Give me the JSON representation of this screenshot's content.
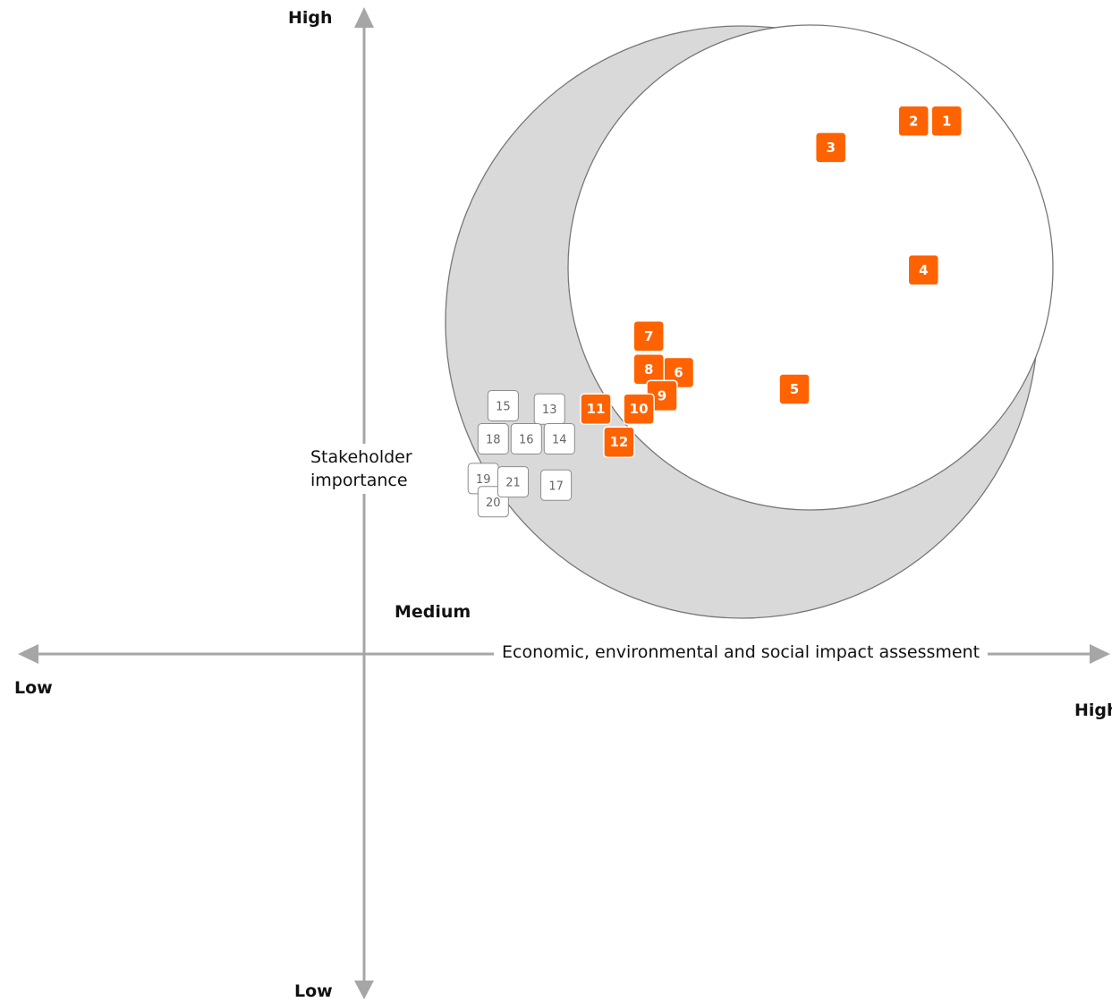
{
  "y_axis": {
    "title_line1": "Stakeholder",
    "title_line2": "importance",
    "high_label": "High",
    "low_label": "Low"
  },
  "x_axis": {
    "title": "Economic, environmental and social impact assessment",
    "high_label": "High",
    "low_label": "Low"
  },
  "medium_label": "Medium",
  "colors": {
    "material": "#ff6200",
    "non_material": "#ffffff",
    "crescent": "#d9d9d9",
    "axis": "#a6a6a6"
  },
  "chart_data": {
    "type": "scatter",
    "xlabel": "Economic, environmental and social impact assessment",
    "ylabel": "Stakeholder importance",
    "xlim": [
      -10,
      21
    ],
    "ylim": [
      -10,
      18
    ],
    "points": [
      {
        "id": "1",
        "x": 17.6,
        "y": 16.1,
        "material": true
      },
      {
        "id": "2",
        "x": 16.6,
        "y": 16.1,
        "material": true
      },
      {
        "id": "3",
        "x": 14.1,
        "y": 15.3,
        "material": true
      },
      {
        "id": "4",
        "x": 16.9,
        "y": 11.6,
        "material": true
      },
      {
        "id": "5",
        "x": 13.0,
        "y": 8.0,
        "material": true
      },
      {
        "id": "6",
        "x": 9.5,
        "y": 8.5,
        "material": true
      },
      {
        "id": "7",
        "x": 8.6,
        "y": 9.6,
        "material": true
      },
      {
        "id": "8",
        "x": 8.6,
        "y": 8.6,
        "material": true
      },
      {
        "id": "9",
        "x": 9.0,
        "y": 7.8,
        "material": true
      },
      {
        "id": "10",
        "x": 8.3,
        "y": 7.4,
        "material": true
      },
      {
        "id": "11",
        "x": 7.0,
        "y": 7.4,
        "material": true
      },
      {
        "id": "12",
        "x": 7.7,
        "y": 6.4,
        "material": true
      },
      {
        "id": "13",
        "x": 5.6,
        "y": 7.4,
        "material": false
      },
      {
        "id": "14",
        "x": 5.9,
        "y": 6.5,
        "material": false
      },
      {
        "id": "15",
        "x": 4.2,
        "y": 7.5,
        "material": false
      },
      {
        "id": "16",
        "x": 4.9,
        "y": 6.5,
        "material": false
      },
      {
        "id": "17",
        "x": 5.8,
        "y": 5.1,
        "material": false
      },
      {
        "id": "18",
        "x": 3.9,
        "y": 6.5,
        "material": false
      },
      {
        "id": "19",
        "x": 3.6,
        "y": 5.3,
        "material": false
      },
      {
        "id": "20",
        "x": 3.9,
        "y": 4.6,
        "material": false
      },
      {
        "id": "21",
        "x": 4.5,
        "y": 5.2,
        "material": false
      }
    ]
  }
}
